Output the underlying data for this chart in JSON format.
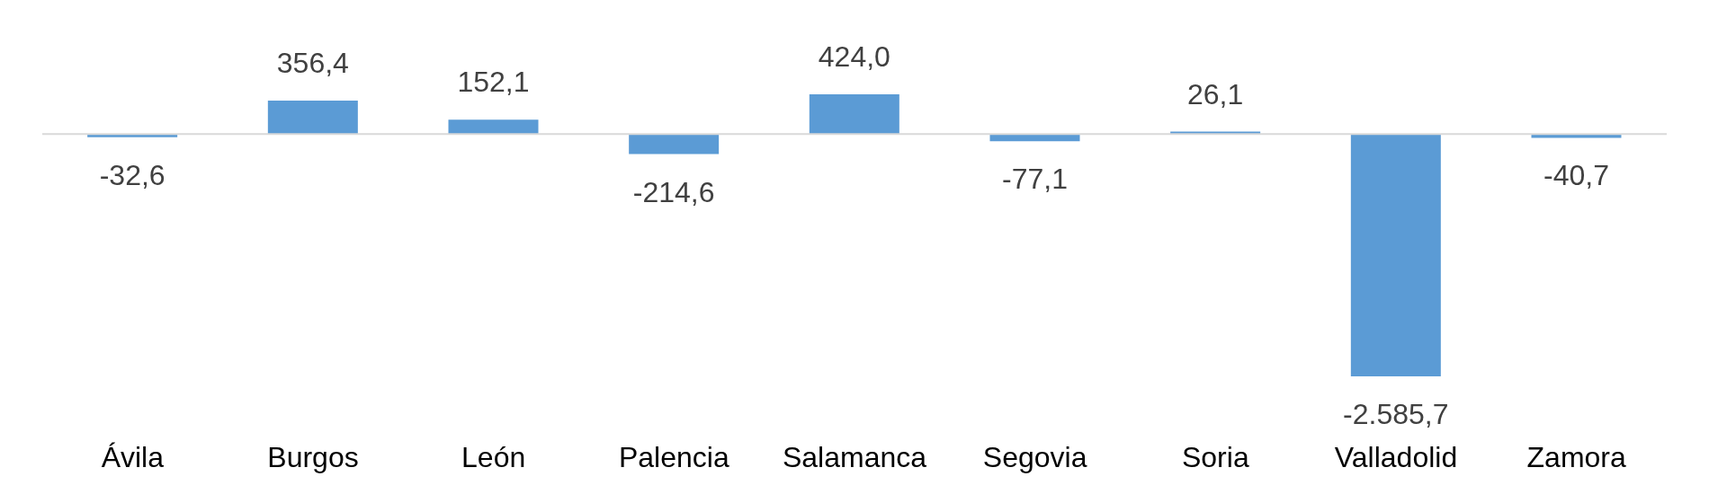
{
  "chart_data": {
    "type": "bar",
    "categories": [
      "Ávila",
      "Burgos",
      "León",
      "Palencia",
      "Salamanca",
      "Segovia",
      "Soria",
      "Valladolid",
      "Zamora"
    ],
    "values": [
      -32.6,
      356.4,
      152.1,
      -214.6,
      424.0,
      -77.1,
      26.1,
      -2585.7,
      -40.7
    ],
    "value_labels": [
      "-32,6",
      "356,4",
      "152,1",
      "-214,6",
      "424,0",
      "-77,1",
      "26,1",
      "-2.585,7",
      "-40,7"
    ],
    "color": "#5b9bd5"
  }
}
